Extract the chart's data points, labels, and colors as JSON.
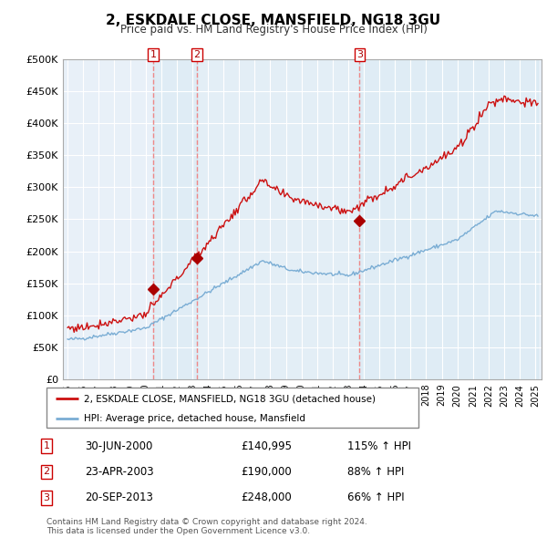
{
  "title": "2, ESKDALE CLOSE, MANSFIELD, NG18 3GU",
  "subtitle": "Price paid vs. HM Land Registry's House Price Index (HPI)",
  "ylim": [
    0,
    500000
  ],
  "yticks": [
    0,
    50000,
    100000,
    150000,
    200000,
    250000,
    300000,
    350000,
    400000,
    450000,
    500000
  ],
  "ytick_labels": [
    "£0",
    "£50K",
    "£100K",
    "£150K",
    "£200K",
    "£250K",
    "£300K",
    "£350K",
    "£400K",
    "£450K",
    "£500K"
  ],
  "sale1_date": "30-JUN-2000",
  "sale1_price": 140995,
  "sale1_hpi": "115% ↑ HPI",
  "sale1_year": 2000.5,
  "sale2_date": "23-APR-2003",
  "sale2_price": 190000,
  "sale2_hpi": "88% ↑ HPI",
  "sale2_year": 2003.3,
  "sale3_date": "20-SEP-2013",
  "sale3_price": 248000,
  "sale3_hpi": "66% ↑ HPI",
  "sale3_year": 2013.72,
  "hpi_color": "#7aadd4",
  "price_color": "#cc1111",
  "marker_color": "#aa0000",
  "vline_color": "#ee8888",
  "chart_bg": "#e8f0f8",
  "grid_color": "#ffffff",
  "legend_label_price": "2, ESKDALE CLOSE, MANSFIELD, NG18 3GU (detached house)",
  "legend_label_hpi": "HPI: Average price, detached house, Mansfield",
  "footnote": "Contains HM Land Registry data © Crown copyright and database right 2024.\nThis data is licensed under the Open Government Licence v3.0.",
  "sale_prices_str": [
    "£140,995",
    "£190,000",
    "£248,000"
  ]
}
